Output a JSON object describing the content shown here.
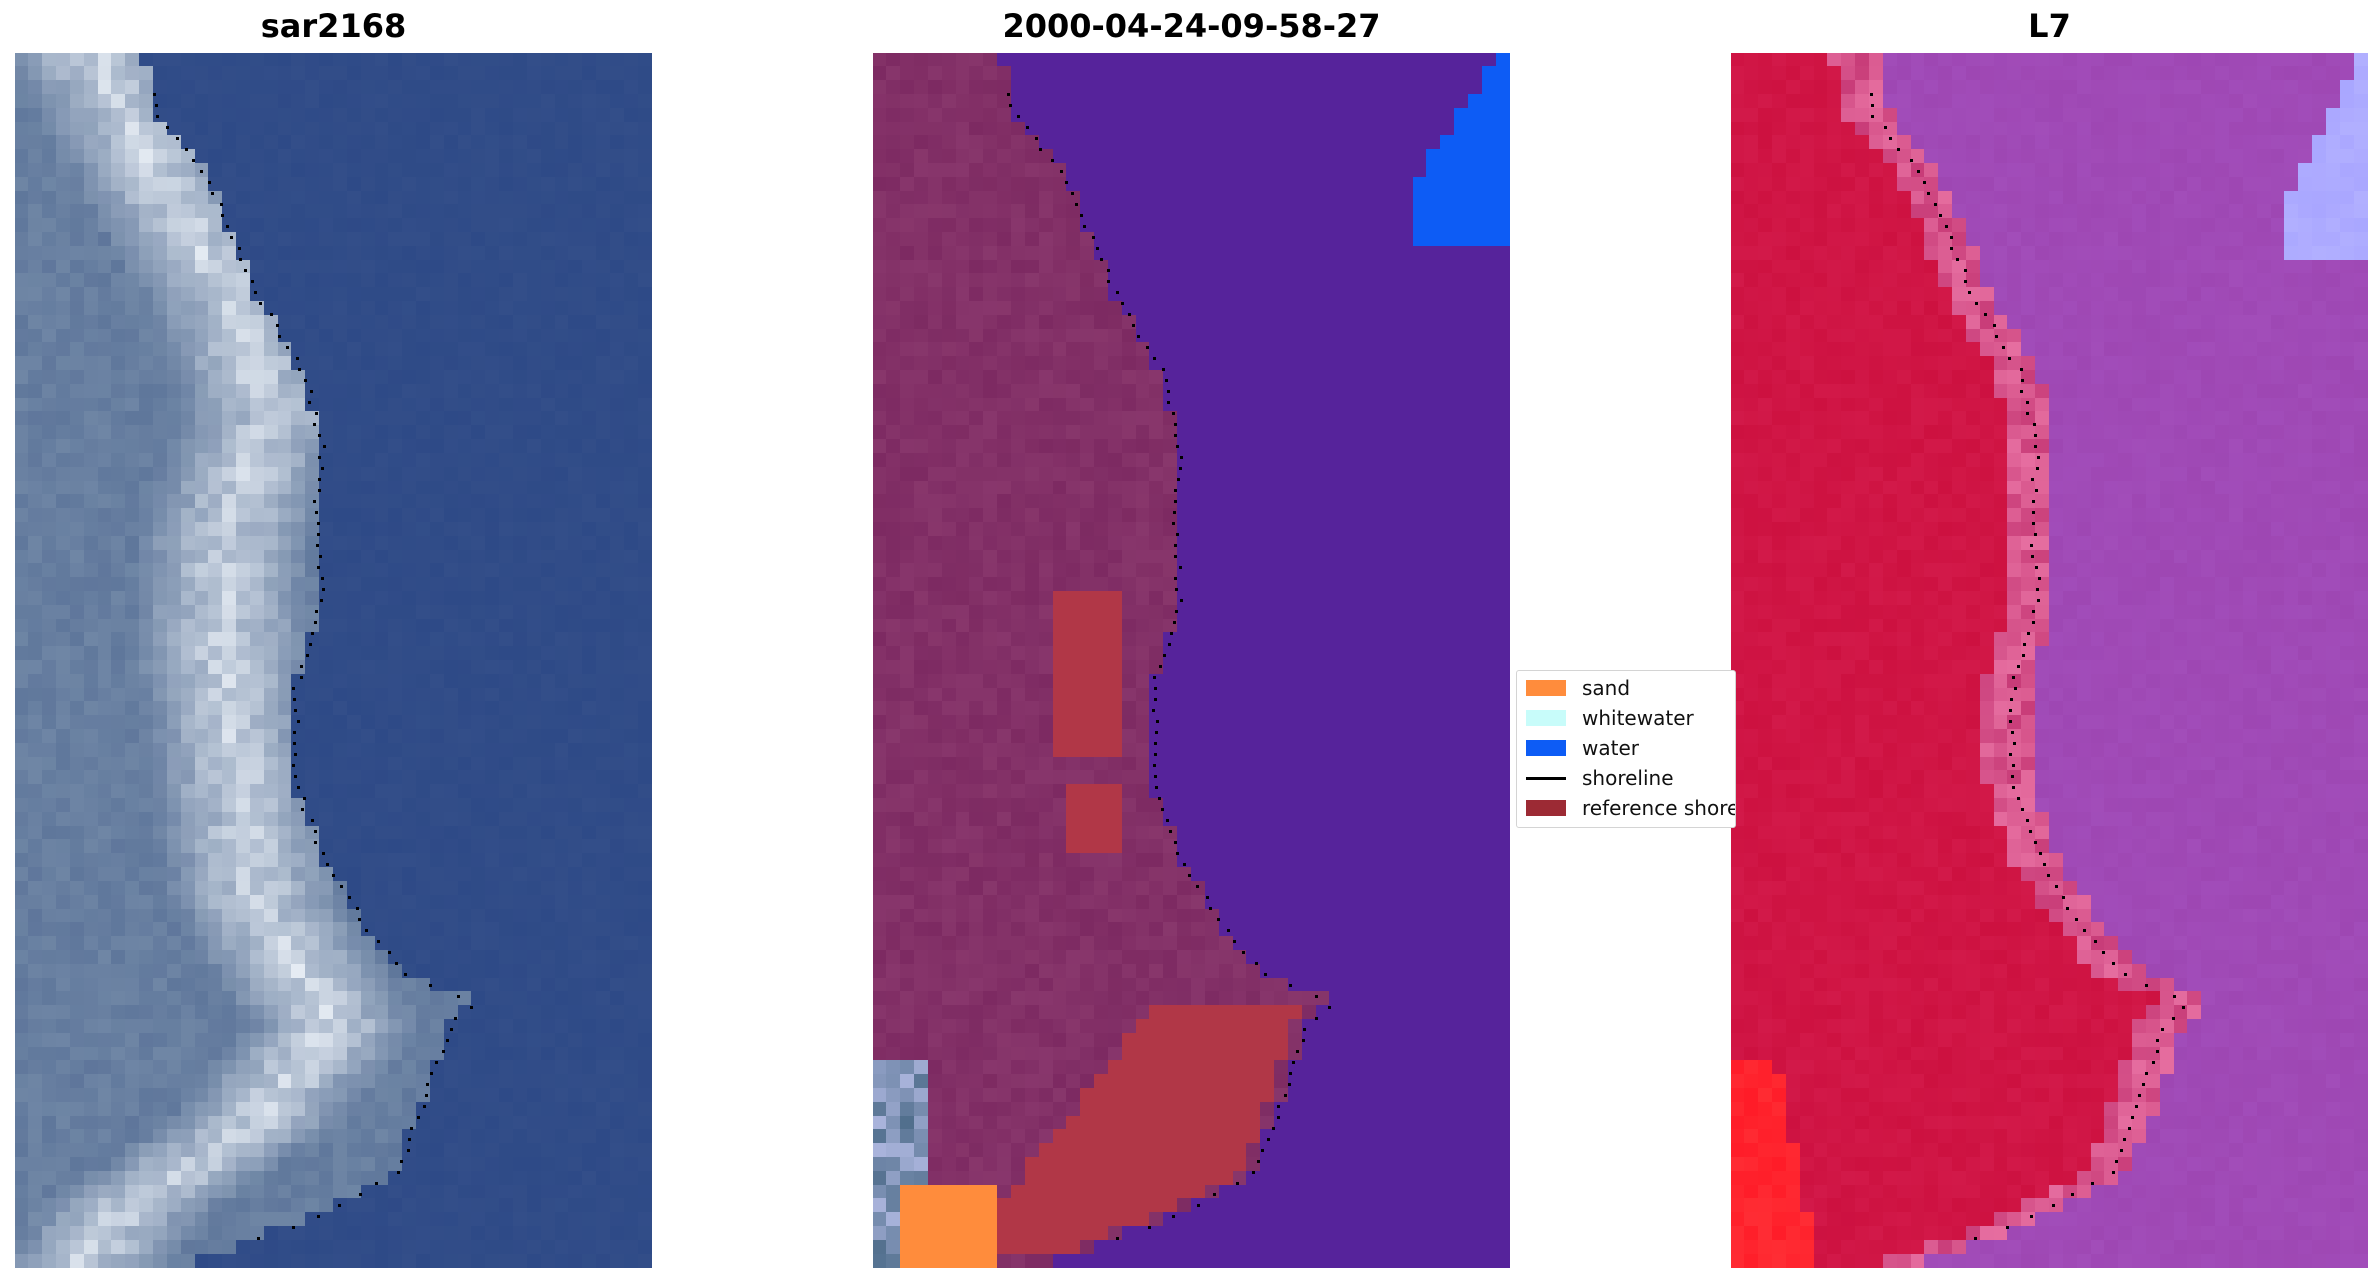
{
  "panels": [
    {
      "title": "sar2168",
      "image": "rgb-satellite-image"
    },
    {
      "title": "2000-04-24-09-58-27",
      "image": "classified-image"
    },
    {
      "title": "L7",
      "image": "false-color-image"
    }
  ],
  "legend": {
    "items": [
      {
        "label": "sand",
        "color": "#ff8c3c",
        "kind": "patch"
      },
      {
        "label": "whitewater",
        "color": "#c8fcfa",
        "kind": "patch"
      },
      {
        "label": "water",
        "color": "#0d5cf5",
        "kind": "patch"
      },
      {
        "label": "shoreline",
        "color": "#000000",
        "kind": "line"
      },
      {
        "label": "reference shoreline",
        "color": "#9c2a34",
        "kind": "patch"
      }
    ]
  },
  "colors": {
    "panel1_water": "#2e4a87",
    "panel1_land": "#6f86a5",
    "panel1_bright": "#e8eef5",
    "panel2_water": "#56239b",
    "panel2_land": "#7d2a62",
    "panel2_reference": "#b13747",
    "panel2_blue": "#0d5cf5",
    "panel2_sand": "#ff8c3c",
    "panel3_water": "#9e47b3",
    "panel3_land": "#cd1140",
    "panel3_red": "#ff1c28",
    "panel3_lightblue": "#a9a6ff"
  }
}
